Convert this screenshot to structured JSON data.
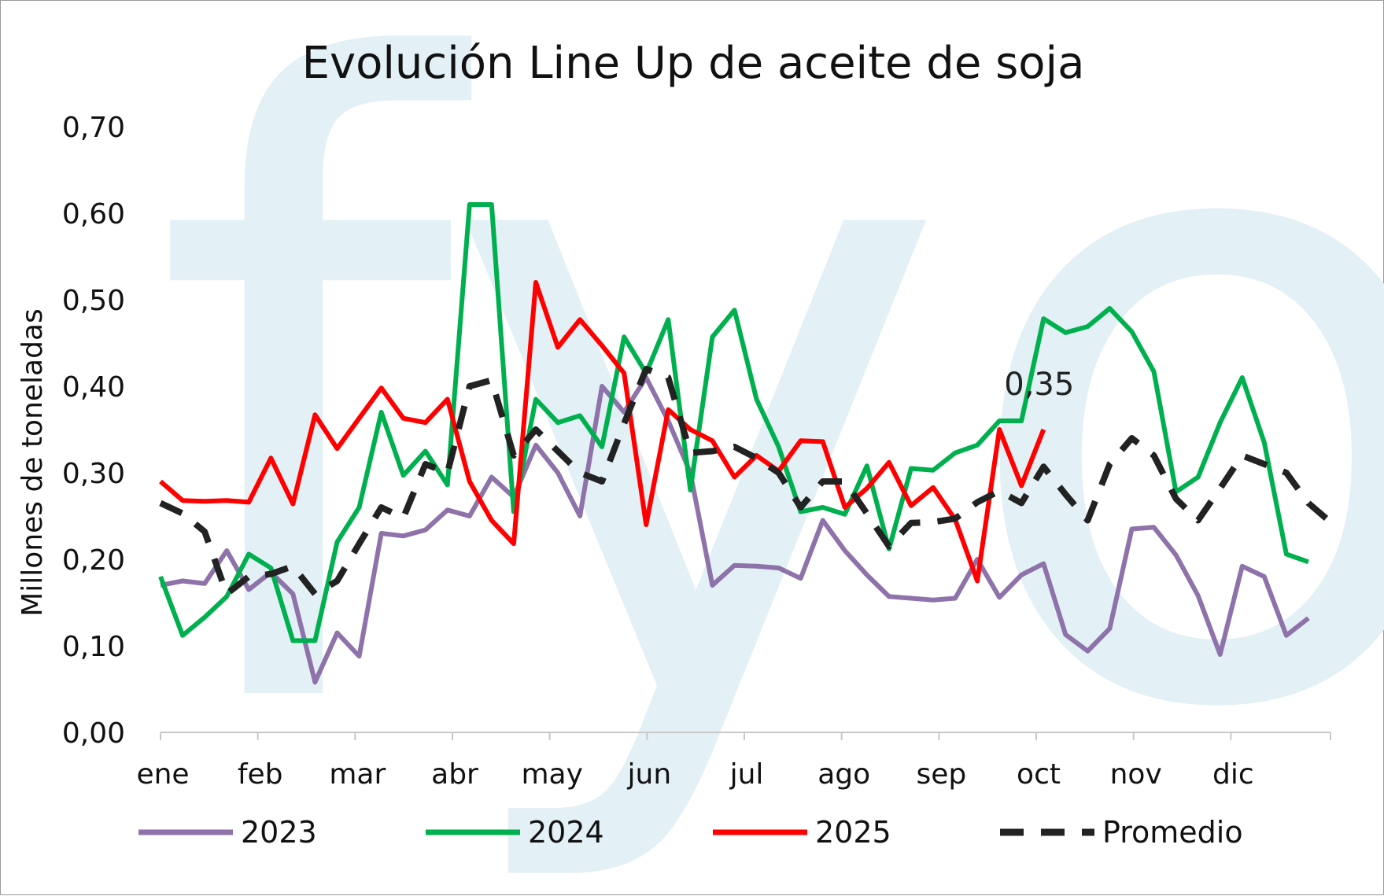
{
  "chart_data": {
    "type": "line",
    "title": "Evolución Line Up de aceite de soja",
    "ylabel": "Millones de toneladas",
    "ylim": [
      0,
      0.7
    ],
    "yticks": [
      "0,00",
      "0,10",
      "0,20",
      "0,30",
      "0,40",
      "0,50",
      "0,60",
      "0,70"
    ],
    "ytick_values": [
      0,
      0.1,
      0.2,
      0.3,
      0.4,
      0.5,
      0.6,
      0.7
    ],
    "months": [
      "ene",
      "feb",
      "mar",
      "abr",
      "may",
      "jun",
      "jul",
      "ago",
      "sep",
      "oct",
      "nov",
      "dic"
    ],
    "watermark": "fyo",
    "legend_position": "bottom",
    "annotation": {
      "text": "0,35",
      "series": "2025"
    },
    "series": [
      {
        "name": "2023",
        "color": "#8e72aa",
        "style": "solid",
        "values": [
          0.17,
          0.175,
          0.172,
          0.21,
          0.165,
          0.185,
          0.16,
          0.058,
          0.115,
          0.088,
          0.23,
          0.227,
          0.234,
          0.257,
          0.25,
          0.295,
          0.272,
          0.332,
          0.3,
          0.25,
          0.4,
          0.37,
          0.41,
          0.36,
          0.3,
          0.17,
          0.193,
          0.192,
          0.19,
          0.178,
          0.245,
          0.21,
          0.182,
          0.157,
          0.155,
          0.153,
          0.155,
          0.2,
          0.156,
          0.182,
          0.195,
          0.113,
          0.094,
          0.12,
          0.235,
          0.237,
          0.205,
          0.158,
          0.09,
          0.192,
          0.18,
          0.112,
          0.132
        ]
      },
      {
        "name": "2024",
        "color": "#00b04f",
        "style": "solid",
        "values": [
          0.18,
          0.112,
          0.133,
          0.157,
          0.206,
          0.19,
          0.106,
          0.106,
          0.22,
          0.26,
          0.37,
          0.297,
          0.325,
          0.286,
          0.61,
          0.61,
          0.255,
          0.385,
          0.358,
          0.366,
          0.33,
          0.457,
          0.415,
          0.477,
          0.28,
          0.457,
          0.488,
          0.385,
          0.33,
          0.255,
          0.26,
          0.252,
          0.308,
          0.212,
          0.305,
          0.303,
          0.323,
          0.332,
          0.36,
          0.36,
          0.478,
          0.462,
          0.469,
          0.49,
          0.463,
          0.417,
          0.278,
          0.295,
          0.358,
          0.41,
          0.335,
          0.206,
          0.197
        ]
      },
      {
        "name": "2025",
        "color": "#ff0000",
        "style": "solid",
        "values": [
          0.29,
          0.268,
          0.267,
          0.268,
          0.266,
          0.317,
          0.264,
          0.367,
          0.328,
          0.363,
          0.398,
          0.363,
          0.358,
          0.385,
          0.29,
          0.245,
          0.218,
          0.52,
          0.445,
          0.477,
          0.447,
          0.415,
          0.24,
          0.373,
          0.35,
          0.337,
          0.295,
          0.32,
          0.302,
          0.337,
          0.336,
          0.26,
          0.282,
          0.312,
          0.262,
          0.283,
          0.246,
          0.175,
          0.35,
          0.285,
          0.35
        ]
      },
      {
        "name": "Promedio",
        "color": "#222222",
        "style": "dashed",
        "values": [
          0.265,
          0.253,
          0.232,
          0.16,
          0.18,
          0.183,
          0.192,
          0.16,
          0.175,
          0.218,
          0.26,
          0.248,
          0.31,
          0.3,
          0.4,
          0.407,
          0.32,
          0.35,
          0.325,
          0.3,
          0.29,
          0.357,
          0.42,
          0.41,
          0.323,
          0.325,
          0.33,
          0.317,
          0.3,
          0.26,
          0.29,
          0.29,
          0.253,
          0.215,
          0.242,
          0.243,
          0.247,
          0.266,
          0.279,
          0.265,
          0.307,
          0.275,
          0.245,
          0.31,
          0.34,
          0.32,
          0.27,
          0.245,
          0.282,
          0.32,
          0.31,
          0.3,
          0.265,
          0.243
        ]
      }
    ]
  }
}
